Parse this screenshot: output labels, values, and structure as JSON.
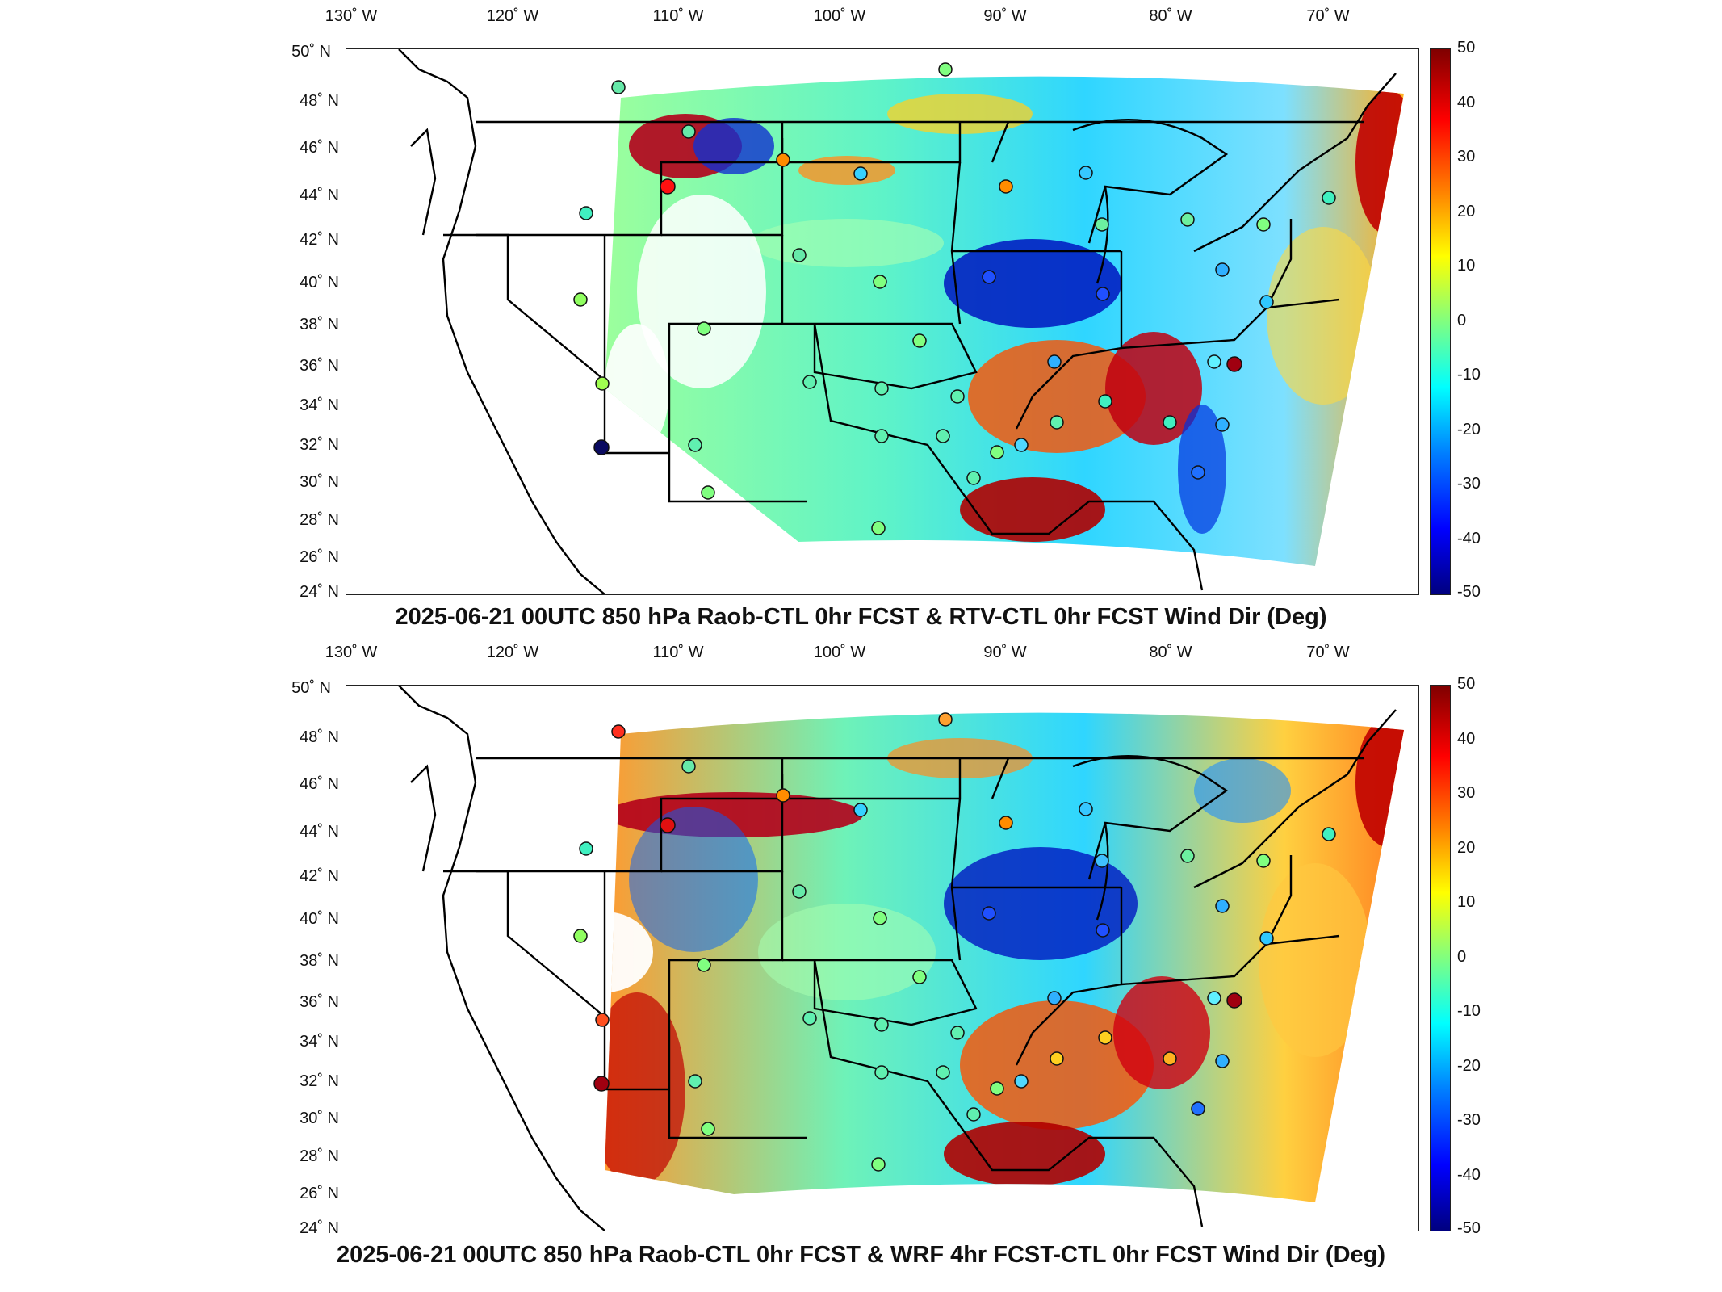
{
  "colorbar": {
    "ticks": [
      "50",
      "40",
      "30",
      "20",
      "10",
      "0",
      "-10",
      "-20",
      "-30",
      "-40",
      "-50"
    ]
  },
  "axes": {
    "lon_labels": [
      "130˚ W",
      "120˚ W",
      "110˚ W",
      "100˚ W",
      "90˚ W",
      "80˚ W",
      "70˚ W"
    ],
    "lat_labels": [
      "50˚ N",
      "48˚ N",
      "46˚ N",
      "44˚ N",
      "42˚ N",
      "40˚ N",
      "38˚ N",
      "36˚ N",
      "34˚ N",
      "32˚ N",
      "30˚ N",
      "28˚ N",
      "26˚ N",
      "24˚ N"
    ]
  },
  "panels": [
    {
      "title": "2025-06-21 00UTC 850 hPa Raob-CTL 0hr FCST & RTV-CTL 0hr FCST Wind Dir (Deg)"
    },
    {
      "title": "2025-06-21 00UTC 850 hPa Raob-CTL 0hr FCST & WRF 4hr FCST-CTL 0hr FCST Wind Dir (Deg)"
    }
  ],
  "colors": {
    "deep_blue": "#00007f",
    "blue": "#0000ff",
    "cyan": "#00ffff",
    "green": "#80ff80",
    "yellow": "#ffff00",
    "orange": "#ff8000",
    "red": "#ff0000",
    "dark_red": "#7f0000"
  }
}
